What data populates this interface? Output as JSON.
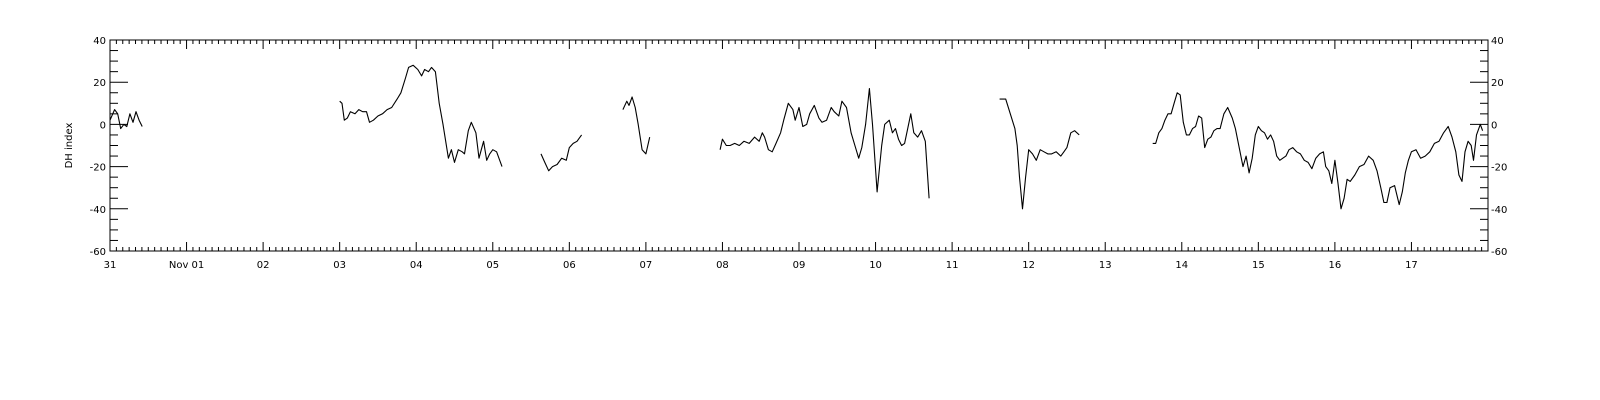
{
  "chart_data": {
    "type": "line",
    "title": "",
    "xlabel": "",
    "ylabel": "DH index",
    "ylim": [
      -60,
      40
    ],
    "y_ticks": [
      -60,
      -40,
      -20,
      0,
      20,
      40
    ],
    "y_tick_labels": [
      "-60",
      "-40",
      "-20",
      "0",
      "20",
      "40"
    ],
    "right_y_tick_labels": [
      "-60",
      "-40",
      "-20",
      "0",
      "20",
      "40"
    ],
    "x_unit": "day",
    "x_range": [
      0,
      18
    ],
    "x_ticks": [
      0,
      1,
      2,
      3,
      4,
      5,
      6,
      7,
      8,
      9,
      10,
      11,
      12,
      13,
      14,
      15,
      16,
      17
    ],
    "x_tick_labels": [
      "31",
      "Nov 01",
      "02",
      "03",
      "04",
      "05",
      "06",
      "07",
      "08",
      "09",
      "10",
      "11",
      "12",
      "13",
      "14",
      "15",
      "16",
      "17"
    ],
    "grid": false,
    "line_color": "#000000",
    "segments": [
      [
        [
          0.0,
          2
        ],
        [
          0.06,
          7
        ],
        [
          0.1,
          5
        ],
        [
          0.14,
          -2
        ],
        [
          0.18,
          0
        ],
        [
          0.22,
          -1
        ],
        [
          0.26,
          5
        ],
        [
          0.3,
          1
        ],
        [
          0.34,
          6
        ],
        [
          0.38,
          2
        ],
        [
          0.42,
          -1
        ]
      ],
      [
        [
          3.0,
          11
        ],
        [
          3.03,
          10
        ],
        [
          3.06,
          2
        ],
        [
          3.1,
          3
        ],
        [
          3.14,
          6
        ],
        [
          3.2,
          5
        ],
        [
          3.25,
          7
        ],
        [
          3.3,
          6
        ],
        [
          3.35,
          6
        ],
        [
          3.39,
          1
        ],
        [
          3.44,
          2
        ],
        [
          3.5,
          4
        ],
        [
          3.56,
          5
        ],
        [
          3.62,
          7
        ],
        [
          3.68,
          8
        ],
        [
          3.75,
          12
        ],
        [
          3.8,
          15
        ],
        [
          3.86,
          22
        ],
        [
          3.9,
          27
        ],
        [
          3.96,
          28
        ],
        [
          4.02,
          26
        ],
        [
          4.07,
          23
        ],
        [
          4.11,
          26
        ],
        [
          4.16,
          25
        ],
        [
          4.2,
          27
        ],
        [
          4.25,
          25
        ],
        [
          4.3,
          10
        ],
        [
          4.35,
          0
        ],
        [
          4.42,
          -16
        ],
        [
          4.46,
          -12
        ],
        [
          4.5,
          -18
        ],
        [
          4.55,
          -12
        ],
        [
          4.6,
          -13
        ],
        [
          4.63,
          -14
        ],
        [
          4.68,
          -3
        ],
        [
          4.72,
          1
        ],
        [
          4.78,
          -4
        ],
        [
          4.82,
          -16
        ],
        [
          4.85,
          -12
        ],
        [
          4.88,
          -8
        ],
        [
          4.92,
          -17
        ],
        [
          4.96,
          -14
        ],
        [
          5.0,
          -12
        ],
        [
          5.05,
          -13
        ],
        [
          5.12,
          -20
        ]
      ],
      [
        [
          5.63,
          -14
        ],
        [
          5.68,
          -18
        ],
        [
          5.73,
          -22
        ],
        [
          5.78,
          -20
        ],
        [
          5.84,
          -19
        ],
        [
          5.9,
          -16
        ],
        [
          5.96,
          -17
        ],
        [
          6.0,
          -11
        ],
        [
          6.05,
          -9
        ],
        [
          6.1,
          -8
        ],
        [
          6.16,
          -5
        ]
      ],
      [
        [
          6.7,
          7
        ],
        [
          6.75,
          11
        ],
        [
          6.78,
          9
        ],
        [
          6.82,
          13
        ],
        [
          6.86,
          8
        ],
        [
          6.9,
          0
        ],
        [
          6.95,
          -12
        ],
        [
          7.0,
          -14
        ],
        [
          7.05,
          -6
        ]
      ],
      [
        [
          7.97,
          -12
        ],
        [
          8.0,
          -7
        ],
        [
          8.05,
          -10
        ],
        [
          8.1,
          -10
        ],
        [
          8.16,
          -9
        ],
        [
          8.22,
          -10
        ],
        [
          8.28,
          -8
        ],
        [
          8.35,
          -9
        ],
        [
          8.42,
          -6
        ],
        [
          8.48,
          -8
        ],
        [
          8.52,
          -4
        ],
        [
          8.55,
          -6
        ],
        [
          8.6,
          -12
        ],
        [
          8.65,
          -13
        ],
        [
          8.7,
          -9
        ],
        [
          8.76,
          -4
        ],
        [
          8.8,
          2
        ],
        [
          8.86,
          10
        ],
        [
          8.92,
          7
        ],
        [
          8.95,
          2
        ],
        [
          9.0,
          8
        ],
        [
          9.05,
          -1
        ],
        [
          9.1,
          0
        ],
        [
          9.14,
          5
        ],
        [
          9.2,
          9
        ],
        [
          9.26,
          3
        ],
        [
          9.3,
          1
        ],
        [
          9.36,
          2
        ],
        [
          9.42,
          8
        ],
        [
          9.46,
          6
        ],
        [
          9.52,
          4
        ],
        [
          9.56,
          11
        ],
        [
          9.62,
          8
        ],
        [
          9.68,
          -4
        ],
        [
          9.73,
          -10
        ],
        [
          9.78,
          -16
        ],
        [
          9.82,
          -11
        ],
        [
          9.87,
          0
        ],
        [
          9.92,
          17
        ],
        [
          9.96,
          0
        ],
        [
          10.02,
          -32
        ],
        [
          10.08,
          -10
        ],
        [
          10.12,
          0
        ],
        [
          10.18,
          2
        ],
        [
          10.22,
          -4
        ],
        [
          10.26,
          -2
        ],
        [
          10.3,
          -7
        ],
        [
          10.34,
          -10
        ],
        [
          10.38,
          -9
        ],
        [
          10.42,
          -2
        ],
        [
          10.46,
          5
        ],
        [
          10.5,
          -4
        ],
        [
          10.55,
          -6
        ],
        [
          10.6,
          -3
        ],
        [
          10.65,
          -8
        ],
        [
          10.7,
          -35
        ]
      ],
      [
        [
          11.62,
          12
        ],
        [
          11.7,
          12
        ],
        [
          11.76,
          5
        ],
        [
          11.82,
          -2
        ],
        [
          11.85,
          -10
        ],
        [
          11.88,
          -25
        ],
        [
          11.92,
          -40
        ],
        [
          11.96,
          -25
        ],
        [
          12.0,
          -12
        ],
        [
          12.05,
          -14
        ],
        [
          12.1,
          -17
        ],
        [
          12.15,
          -12
        ],
        [
          12.2,
          -13
        ],
        [
          12.25,
          -14
        ],
        [
          12.3,
          -14
        ],
        [
          12.36,
          -13
        ],
        [
          12.42,
          -15
        ],
        [
          12.46,
          -13
        ],
        [
          12.5,
          -11
        ],
        [
          12.55,
          -4
        ],
        [
          12.6,
          -3
        ],
        [
          12.66,
          -5
        ]
      ],
      [
        [
          13.62,
          -9
        ],
        [
          13.66,
          -9
        ],
        [
          13.7,
          -4
        ],
        [
          13.74,
          -2
        ],
        [
          13.78,
          2
        ],
        [
          13.82,
          5
        ],
        [
          13.86,
          5
        ],
        [
          13.9,
          10
        ],
        [
          13.94,
          15
        ],
        [
          13.98,
          14
        ],
        [
          14.02,
          1
        ],
        [
          14.06,
          -5
        ],
        [
          14.1,
          -5
        ],
        [
          14.14,
          -2
        ],
        [
          14.18,
          -1
        ],
        [
          14.22,
          4
        ],
        [
          14.26,
          3
        ],
        [
          14.3,
          -11
        ],
        [
          14.34,
          -7
        ],
        [
          14.38,
          -6
        ],
        [
          14.42,
          -3
        ],
        [
          14.46,
          -2
        ],
        [
          14.5,
          -2
        ],
        [
          14.55,
          5
        ],
        [
          14.6,
          8
        ],
        [
          14.66,
          3
        ],
        [
          14.7,
          -2
        ],
        [
          14.75,
          -11
        ],
        [
          14.8,
          -20
        ],
        [
          14.84,
          -15
        ],
        [
          14.88,
          -23
        ],
        [
          14.92,
          -16
        ],
        [
          14.96,
          -5
        ],
        [
          15.0,
          -1
        ],
        [
          15.04,
          -3
        ],
        [
          15.08,
          -4
        ],
        [
          15.12,
          -7
        ],
        [
          15.16,
          -5
        ],
        [
          15.2,
          -8
        ],
        [
          15.24,
          -15
        ],
        [
          15.28,
          -17
        ],
        [
          15.32,
          -16
        ],
        [
          15.36,
          -15
        ],
        [
          15.4,
          -12
        ],
        [
          15.45,
          -11
        ],
        [
          15.5,
          -13
        ],
        [
          15.55,
          -14
        ],
        [
          15.6,
          -17
        ],
        [
          15.65,
          -18
        ],
        [
          15.7,
          -21
        ],
        [
          15.75,
          -16
        ],
        [
          15.8,
          -14
        ],
        [
          15.85,
          -13
        ],
        [
          15.88,
          -20
        ],
        [
          15.92,
          -22
        ],
        [
          15.96,
          -28
        ],
        [
          16.0,
          -17
        ],
        [
          16.04,
          -28
        ],
        [
          16.08,
          -40
        ],
        [
          16.12,
          -35
        ],
        [
          16.16,
          -26
        ],
        [
          16.2,
          -27
        ],
        [
          16.26,
          -24
        ],
        [
          16.32,
          -20
        ],
        [
          16.38,
          -19
        ],
        [
          16.44,
          -15
        ],
        [
          16.5,
          -17
        ],
        [
          16.55,
          -22
        ],
        [
          16.6,
          -30
        ],
        [
          16.64,
          -37
        ],
        [
          16.68,
          -37
        ],
        [
          16.72,
          -30
        ],
        [
          16.78,
          -29
        ],
        [
          16.84,
          -38
        ],
        [
          16.88,
          -32
        ],
        [
          16.92,
          -23
        ],
        [
          16.96,
          -17
        ],
        [
          17.0,
          -13
        ],
        [
          17.06,
          -12
        ],
        [
          17.12,
          -16
        ],
        [
          17.18,
          -15
        ],
        [
          17.24,
          -13
        ],
        [
          17.3,
          -9
        ],
        [
          17.36,
          -8
        ],
        [
          17.42,
          -4
        ],
        [
          17.48,
          -1
        ],
        [
          17.53,
          -6
        ],
        [
          17.58,
          -13
        ],
        [
          17.62,
          -24
        ],
        [
          17.66,
          -27
        ],
        [
          17.7,
          -13
        ],
        [
          17.74,
          -8
        ],
        [
          17.78,
          -10
        ],
        [
          17.81,
          -17
        ],
        [
          17.85,
          -5
        ],
        [
          17.9,
          0
        ],
        [
          17.93,
          -3
        ]
      ]
    ]
  }
}
